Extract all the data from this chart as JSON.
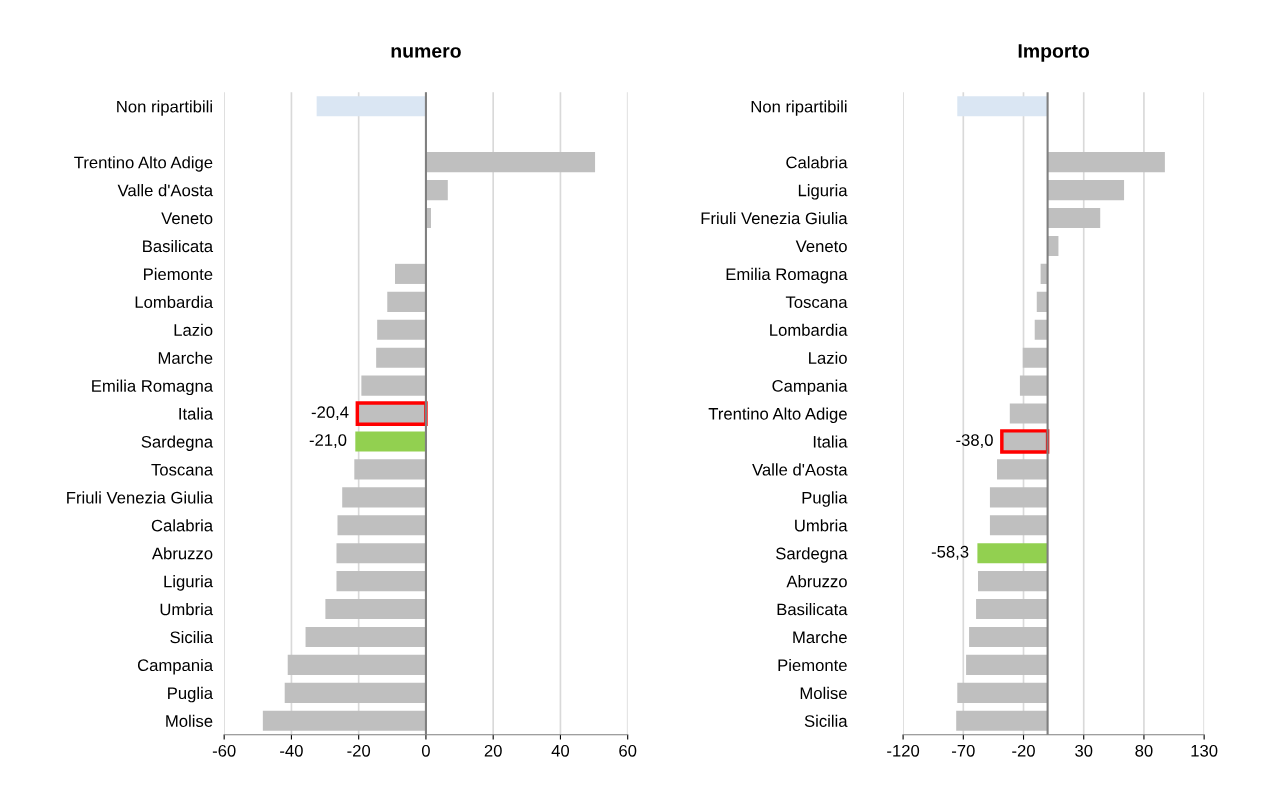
{
  "chart_data": [
    {
      "type": "bar",
      "orientation": "horizontal",
      "title": "numero",
      "categories": [
        "Non ripartibili",
        null,
        "Trentino Alto Adige",
        "Valle d'Aosta",
        "Veneto",
        "Basilicata",
        "Piemonte",
        "Lombardia",
        "Lazio",
        "Marche",
        "Emilia Romagna",
        "Italia",
        "Sardegna",
        "Toscana",
        "Friuli Venezia Giulia",
        "Calabria",
        "Abruzzo",
        "Liguria",
        "Umbria",
        "Sicilia",
        "Campania",
        "Puglia",
        "Molise"
      ],
      "values": [
        -32.5,
        null,
        50.3,
        6.5,
        1.5,
        0,
        -9.2,
        -11.5,
        -14.5,
        -14.8,
        -19.2,
        -20.4,
        -21.0,
        -21.3,
        -24.9,
        -26.3,
        -26.6,
        -26.6,
        -29.9,
        -35.8,
        -41.1,
        -42.0,
        -48.5
      ],
      "colors": [
        "#dae6f3",
        null,
        "#bfbfbf",
        "#bfbfbf",
        "#bfbfbf",
        "#bfbfbf",
        "#bfbfbf",
        "#bfbfbf",
        "#bfbfbf",
        "#bfbfbf",
        "#bfbfbf",
        "#bfbfbf",
        "#92d050",
        "#bfbfbf",
        "#bfbfbf",
        "#bfbfbf",
        "#bfbfbf",
        "#bfbfbf",
        "#bfbfbf",
        "#bfbfbf",
        "#bfbfbf",
        "#bfbfbf",
        "#bfbfbf"
      ],
      "value_labels": [
        null,
        null,
        null,
        null,
        null,
        null,
        null,
        null,
        null,
        null,
        null,
        null,
        "-21,0",
        null,
        null,
        null,
        null,
        null,
        null,
        null,
        null,
        null,
        null
      ],
      "annotations": [
        {
          "text": "-20,4",
          "x": -20.4,
          "y": "Italia"
        }
      ],
      "xlim": [
        -60,
        60
      ],
      "xticks": [
        -60,
        -40,
        -20,
        0,
        20,
        40,
        60
      ],
      "grid": "x"
    },
    {
      "type": "bar",
      "orientation": "horizontal",
      "title": "Importo",
      "categories": [
        "Non ripartibili",
        null,
        "Calabria",
        "Liguria",
        "Friuli Venezia Giulia",
        "Veneto",
        "Emilia Romagna",
        "Toscana",
        "Lombardia",
        "Lazio",
        "Campania",
        "Trentino Alto Adige",
        "Italia",
        "Valle d'Aosta",
        "Puglia",
        "Umbria",
        "Sardegna",
        "Abruzzo",
        "Basilicata",
        "Marche",
        "Piemonte",
        "Molise",
        "Sicilia"
      ],
      "values": [
        -75,
        null,
        97.4,
        63.5,
        43.7,
        9,
        -5.8,
        -9,
        -10.7,
        -20.6,
        -23,
        -31.4,
        -38.0,
        -42,
        -47.9,
        -47.9,
        -58.3,
        -57.8,
        -59.4,
        -65.2,
        -67.7,
        -75,
        -75.9
      ],
      "colors": [
        "#dae6f3",
        null,
        "#bfbfbf",
        "#bfbfbf",
        "#bfbfbf",
        "#bfbfbf",
        "#bfbfbf",
        "#bfbfbf",
        "#bfbfbf",
        "#bfbfbf",
        "#bfbfbf",
        "#bfbfbf",
        "#bfbfbf",
        "#bfbfbf",
        "#bfbfbf",
        "#bfbfbf",
        "#92d050",
        "#bfbfbf",
        "#bfbfbf",
        "#bfbfbf",
        "#bfbfbf",
        "#bfbfbf",
        "#bfbfbf"
      ],
      "value_labels": [
        null,
        null,
        null,
        null,
        null,
        null,
        null,
        null,
        null,
        null,
        null,
        null,
        null,
        null,
        null,
        null,
        "-58,3",
        null,
        null,
        null,
        null,
        null,
        null
      ],
      "annotations": [
        {
          "text": "-38,0",
          "x": -38.0,
          "y": "Italia"
        }
      ],
      "xlim": [
        -120,
        130
      ],
      "xticks": [
        -120,
        -70,
        -20,
        30,
        80,
        130
      ],
      "grid": "x"
    }
  ]
}
